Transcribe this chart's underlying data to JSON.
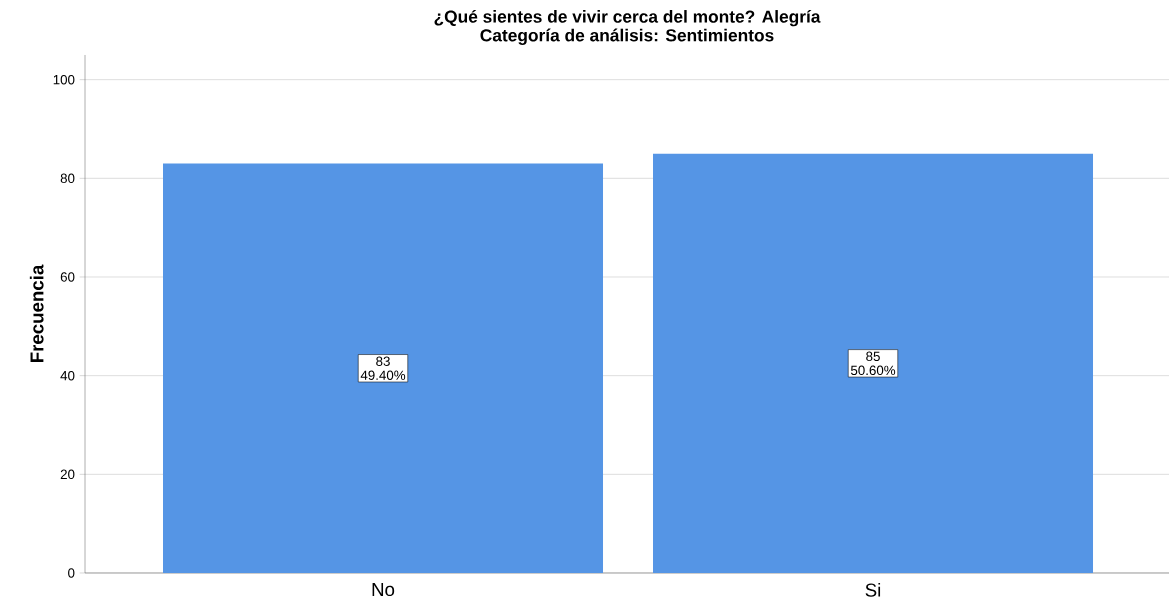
{
  "chart_data": {
    "type": "bar",
    "title": "¿Qué sientes de vivir cerca del monte? Alegría",
    "subtitle": "Categoría de análisis: Sentimientos",
    "ylabel": "Frecuencia",
    "categories": [
      "No",
      "Si"
    ],
    "values": [
      83,
      85
    ],
    "color": "#5595e5",
    "value_labels": [
      "83 49.40%",
      "85 50.60%"
    ],
    "ylim": [
      0,
      105
    ],
    "yticks": [
      0,
      20,
      40,
      60,
      80,
      100
    ],
    "grid": "y"
  }
}
